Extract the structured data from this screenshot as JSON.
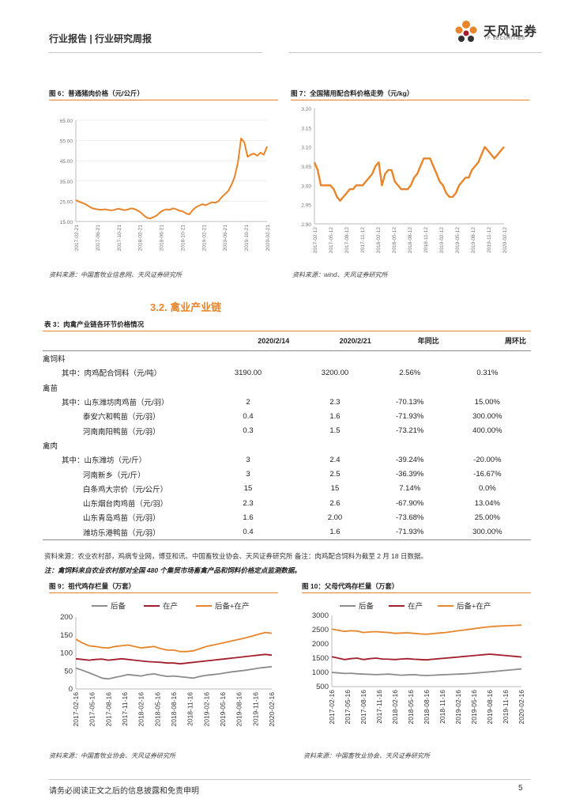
{
  "header": {
    "breadcrumb": "行业报告 | 行业研究周报",
    "logo_cn": "天风证券",
    "logo_en": "TF SECURITIES"
  },
  "figures": {
    "fig6": {
      "title": "图 6：普通猪肉价格（元/公斤）",
      "source": "资料来源：中国畜牧业信息网、天风证券研究所"
    },
    "fig7": {
      "title": "图 7：全国猪用配合料价格走势（元/kg）",
      "source": "资料来源：wind、天风证券研究所"
    },
    "fig9": {
      "title": "图 9：祖代鸡存栏量（万套）",
      "source": "资料来源：中国畜牧业协会、天风证券研究所"
    },
    "fig10": {
      "title": "图 10：父母代鸡存栏量（万套）",
      "source": "资料来源：中国畜牧业协会、天风证券研究所"
    }
  },
  "section_title": "3.2. 禽业产业链",
  "table": {
    "title": "表 3：肉禽产业链各环节价格情况",
    "headers": [
      "",
      "2020/2/14",
      "2020/2/21",
      "年同比",
      "周环比"
    ],
    "rows": [
      {
        "label": "禽饲料",
        "kind": "group",
        "v1": "",
        "v2": "",
        "v3": "",
        "v4": ""
      },
      {
        "label": "其中：肉鸡配合饲料（元/吨）",
        "kind": "sub",
        "v1": "3190.00",
        "v2": "3200.00",
        "v3": "2.56%",
        "v4": "0.31%"
      },
      {
        "label": "禽苗",
        "kind": "group",
        "v1": "",
        "v2": "",
        "v3": "",
        "v4": ""
      },
      {
        "label": "其中：山东潍坊肉鸡苗（元/羽）",
        "kind": "sub",
        "v1": "2",
        "v2": "2.3",
        "v3": "-70.13%",
        "v4": "15.00%"
      },
      {
        "label": "泰安六和鸭苗（元/羽）",
        "kind": "sub2",
        "v1": "0.4",
        "v2": "1.6",
        "v3": "-71.93%",
        "v4": "300.00%"
      },
      {
        "label": "河南南阳鸭苗（元/羽）",
        "kind": "sub2",
        "v1": "0.3",
        "v2": "1.5",
        "v3": "-73.21%",
        "v4": "400.00%"
      },
      {
        "label": "禽肉",
        "kind": "group",
        "v1": "",
        "v2": "",
        "v3": "",
        "v4": ""
      },
      {
        "label": "其中：山东潍坊（元/斤）",
        "kind": "sub",
        "v1": "3",
        "v2": "2.4",
        "v3": "-39.24%",
        "v4": "-20.00%"
      },
      {
        "label": "河南新乡（元/斤）",
        "kind": "sub2",
        "v1": "3",
        "v2": "2.5",
        "v3": "-36.39%",
        "v4": "-16.67%"
      },
      {
        "label": "白条鸡大宗价（元/公斤）",
        "kind": "sub2",
        "v1": "15",
        "v2": "15",
        "v3": "7.14%",
        "v4": "0.0%"
      },
      {
        "label": "山东烟台肉鸡苗（元/羽）",
        "kind": "sub2",
        "v1": "2.3",
        "v2": "2.6",
        "v3": "-67.90%",
        "v4": "13.04%"
      },
      {
        "label": "山东青岛鸡苗（元/羽）",
        "kind": "sub2",
        "v1": "1.6",
        "v2": "2.00",
        "v3": "-73.68%",
        "v4": "25.00%"
      },
      {
        "label": "潍坊乐港鸭苗（元/羽）",
        "kind": "sub2",
        "v1": "0.4",
        "v2": "1.6",
        "v3": "-71.93%",
        "v4": "300.00%"
      }
    ],
    "source_note": "资料来源：农业农村部，鸡病专业网，博亚和讯、中国畜牧业协会、天风证券研究所  备注：肉鸡配合饲料为截至 2 月 18 日数据。",
    "note": "注：禽饲料来自农业农村部对全国 480 个集贸市场畜禽产品和饲料价格定点监测数据。"
  },
  "footer": {
    "disclaimer": "请务必阅读正文之后的信息披露和免责申明",
    "page": "5"
  },
  "colors": {
    "orange": "#e8842a",
    "darkred": "#a31d2c",
    "gray": "#8c8c8c"
  },
  "chart_data": [
    {
      "id": "fig6",
      "type": "line",
      "title": "普通猪肉价格（元/公斤）",
      "yticks": [
        "65.00",
        "55.00",
        "45.00",
        "35.00",
        "25.00",
        "15.00"
      ],
      "ylim": [
        15,
        65
      ],
      "xticks": [
        "2017-02-21",
        "2017-06-21",
        "2017-10-21",
        "2018-02-21",
        "2018-06-21",
        "2018-10-21",
        "2019-02-21",
        "2019-06-21",
        "2019-10-21",
        "2020-02-21"
      ],
      "series": [
        {
          "name": "猪肉价格",
          "color": "#e8842a",
          "values": [
            25.5,
            24.8,
            24.2,
            23.5,
            22.5,
            21.6,
            21.2,
            20.9,
            20.8,
            21.0,
            20.7,
            20.5,
            20.8,
            21.3,
            21.0,
            20.6,
            20.9,
            21.5,
            21.2,
            20.5,
            19.5,
            18.0,
            16.8,
            16.5,
            17.2,
            18.0,
            19.5,
            20.5,
            21.0,
            20.8,
            21.5,
            21.0,
            20.3,
            20.0,
            19.0,
            18.5,
            20.5,
            22.0,
            22.8,
            23.5,
            23.0,
            23.8,
            24.5,
            24.2,
            25.0,
            27.0,
            28.5,
            30.0,
            33.0,
            37.0,
            44.0,
            56.0,
            54.0,
            47.0,
            48.0,
            48.5,
            47.5,
            49.0,
            48.0,
            52.0
          ]
        }
      ]
    },
    {
      "id": "fig7",
      "type": "line",
      "title": "全国猪用配合料价格走势（元/kg）",
      "yticks": [
        "3.20",
        "3.15",
        "3.10",
        "3.05",
        "3.00",
        "2.95",
        "2.90"
      ],
      "ylim": [
        2.9,
        3.2
      ],
      "xticks": [
        "2017-02-12",
        "2017-05-12",
        "2017-08-12",
        "2017-11-12",
        "2018-02-12",
        "2018-05-12",
        "2018-08-12",
        "2018-11-12",
        "2019-02-12",
        "2019-05-12",
        "2019-08-12",
        "2019-11-12",
        "2020-02-12"
      ],
      "series": [
        {
          "name": "配合料价格",
          "color": "#e8842a",
          "values": [
            3.06,
            3.04,
            3.0,
            3.0,
            3.0,
            3.0,
            2.99,
            2.97,
            2.96,
            2.97,
            2.98,
            2.99,
            2.99,
            3.0,
            3.0,
            3.0,
            3.01,
            3.02,
            3.03,
            3.05,
            3.06,
            3.0,
            3.03,
            3.04,
            3.04,
            3.01,
            3.0,
            2.99,
            2.99,
            2.99,
            3.0,
            3.02,
            3.03,
            3.05,
            3.07,
            3.07,
            3.07,
            3.05,
            3.03,
            3.01,
            3.0,
            2.98,
            2.97,
            2.97,
            2.98,
            3.0,
            3.01,
            3.02,
            3.02,
            3.04,
            3.05,
            3.06,
            3.08,
            3.1,
            3.09,
            3.08,
            3.07,
            3.08,
            3.09,
            3.1
          ]
        }
      ]
    },
    {
      "id": "fig9",
      "type": "line",
      "title": "祖代鸡存栏量（万套）",
      "yticks": [
        "200",
        "150",
        "100",
        "50",
        "0"
      ],
      "ylim": [
        0,
        200
      ],
      "xticks": [
        "2017-02-16",
        "2017-05-16",
        "2017-08-16",
        "2017-11-16",
        "2018-02-16",
        "2018-05-16",
        "2018-08-16",
        "2018-11-16",
        "2019-02-16",
        "2019-05-16",
        "2019-08-16",
        "2019-11-16",
        "2020-02-16"
      ],
      "series": [
        {
          "name": "后备",
          "color": "#8c8c8c",
          "values": [
            58,
            52,
            45,
            38,
            30,
            28,
            32,
            36,
            40,
            38,
            36,
            40,
            42,
            38,
            35,
            36,
            34,
            32,
            30,
            35,
            38,
            40,
            42,
            45,
            48,
            50,
            52,
            55,
            58,
            60,
            62
          ]
        },
        {
          "name": "在产",
          "color": "#a31d2c",
          "values": [
            84,
            82,
            80,
            82,
            83,
            80,
            82,
            84,
            82,
            80,
            78,
            76,
            75,
            74,
            72,
            72,
            70,
            72,
            74,
            76,
            78,
            80,
            82,
            84,
            86,
            88,
            90,
            92,
            94,
            96,
            94
          ]
        },
        {
          "name": "后备+在产",
          "color": "#e8842a",
          "values": [
            138,
            128,
            120,
            118,
            115,
            114,
            118,
            120,
            122,
            118,
            114,
            116,
            118,
            112,
            108,
            108,
            104,
            104,
            106,
            112,
            118,
            122,
            126,
            130,
            134,
            138,
            142,
            147,
            152,
            157,
            155
          ]
        }
      ]
    },
    {
      "id": "fig10",
      "type": "line",
      "title": "父母代鸡存栏量（万套）",
      "yticks": [
        "3000",
        "2500",
        "2000",
        "1500",
        "1000",
        "500"
      ],
      "ylim": [
        500,
        3000
      ],
      "xticks": [
        "2017-02-16",
        "2017-05-16",
        "2017-08-16",
        "2017-11-16",
        "2018-02-16",
        "2018-05-16",
        "2018-08-16",
        "2018-11-16",
        "2019-02-16",
        "2019-05-16",
        "2019-08-16",
        "2019-11-16",
        "2020-02-16"
      ],
      "series": [
        {
          "name": "后备",
          "color": "#8c8c8c",
          "values": [
            1000,
            980,
            960,
            970,
            950,
            940,
            930,
            920,
            930,
            940,
            920,
            900,
            910,
            920,
            900,
            890,
            900,
            910,
            920,
            930,
            940,
            950,
            960,
            980,
            1000,
            1020,
            1040,
            1060,
            1080,
            1100,
            1120
          ]
        },
        {
          "name": "在产",
          "color": "#a31d2c",
          "values": [
            1550,
            1500,
            1450,
            1480,
            1500,
            1450,
            1480,
            1500,
            1470,
            1460,
            1450,
            1470,
            1480,
            1460,
            1450,
            1440,
            1460,
            1480,
            1500,
            1520,
            1540,
            1560,
            1580,
            1600,
            1620,
            1640,
            1620,
            1600,
            1580,
            1560,
            1540
          ]
        },
        {
          "name": "后备+在产",
          "color": "#e8842a",
          "values": [
            2520,
            2480,
            2440,
            2460,
            2450,
            2400,
            2420,
            2430,
            2410,
            2400,
            2370,
            2380,
            2390,
            2370,
            2350,
            2340,
            2360,
            2380,
            2400,
            2430,
            2460,
            2490,
            2520,
            2550,
            2580,
            2600,
            2620,
            2630,
            2640,
            2650,
            2660
          ]
        }
      ]
    }
  ]
}
